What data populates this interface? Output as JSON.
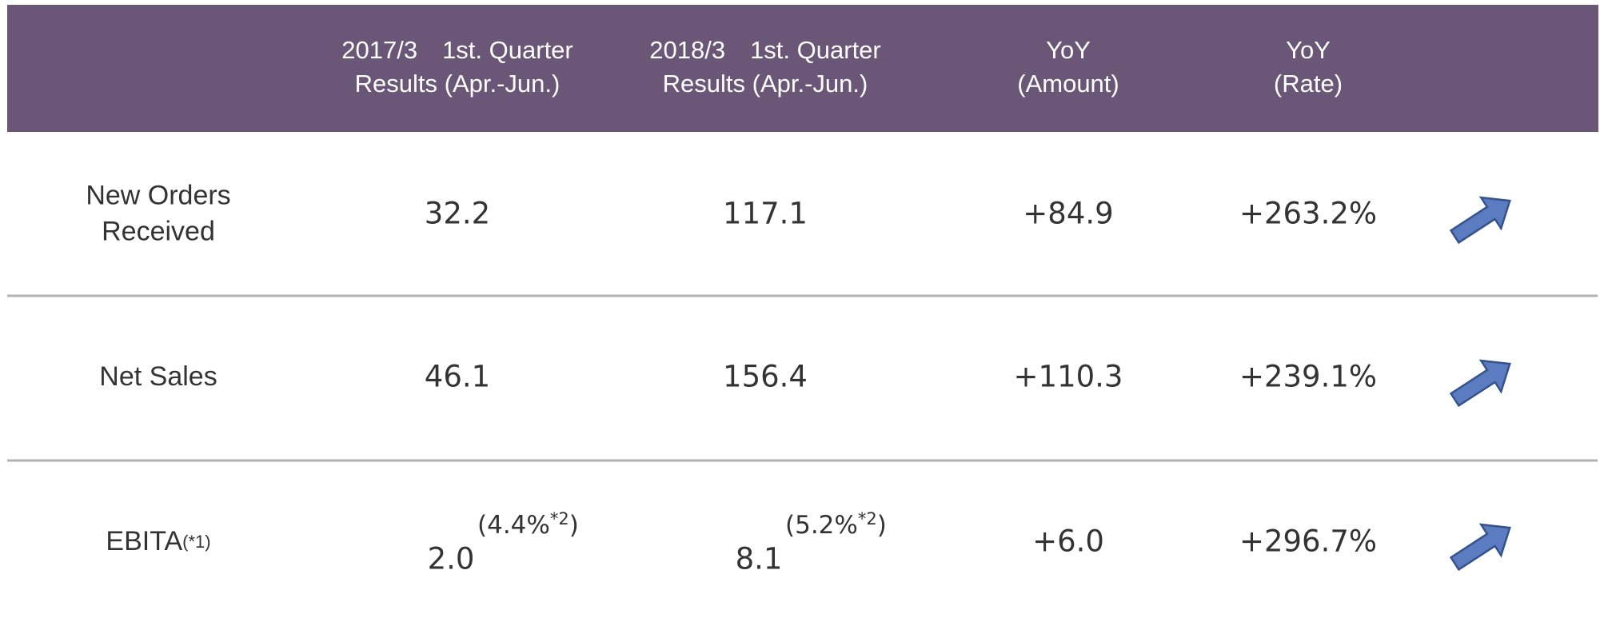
{
  "table": {
    "header": [
      [
        "2017/3　1st. Quarter",
        "Results (Apr.-Jun.)"
      ],
      [
        "2018/3　1st. Quarter",
        "Results (Apr.-Jun.)"
      ],
      [
        "YoY",
        "(Amount)"
      ],
      [
        "YoY",
        "(Rate)"
      ]
    ],
    "rows": [
      {
        "label": [
          "New Orders",
          "Received"
        ],
        "cells": [
          "32.2",
          "117.1",
          "+84.9",
          "+263.2%"
        ]
      },
      {
        "label": [
          "Net Sales"
        ],
        "cells": [
          "46.1",
          "156.4",
          "+110.3",
          "+239.1%"
        ]
      },
      {
        "label": [
          "EBITA"
        ],
        "label_note": "(*1)",
        "cells": [
          "2.0",
          "8.1",
          "+6.0",
          "+296.7%"
        ],
        "notes": [
          [
            "(4.4%",
            "*2",
            ")"
          ],
          [
            "(5.2%",
            "*2",
            ")"
          ]
        ]
      }
    ]
  }
}
